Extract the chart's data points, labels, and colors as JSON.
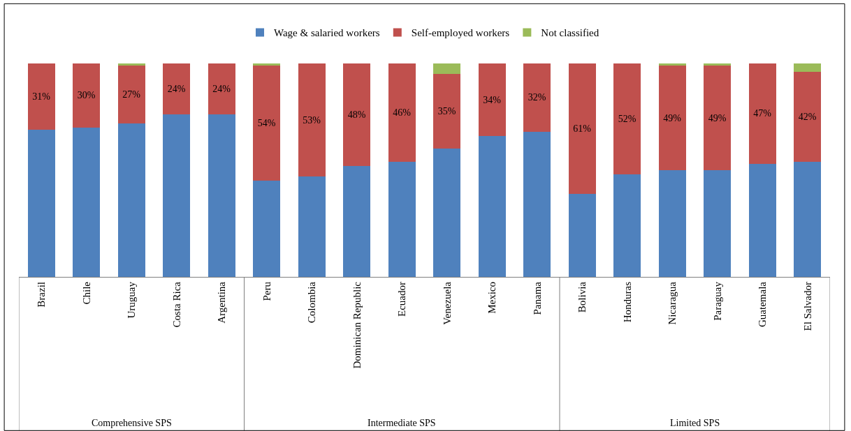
{
  "chart_data": {
    "type": "bar",
    "stacked": true,
    "legend": "top",
    "categories": [
      "Brazil",
      "Chile",
      "Uruguay",
      "Costa Rica",
      "Argentina",
      "Peru",
      "Colombia",
      "Dominican Republic",
      "Ecuador",
      "Venezuela",
      "Mexico",
      "Panama",
      "Bolivia",
      "Honduras",
      "Nicaragua",
      "Paraguay",
      "Guatemala",
      "El Salvador"
    ],
    "series": [
      {
        "name": "Wage & salaried workers",
        "color": "#4f81bd",
        "values": [
          69,
          70,
          72,
          76,
          76,
          45,
          47,
          52,
          54,
          60,
          66,
          68,
          39,
          48,
          50,
          50,
          53,
          54
        ]
      },
      {
        "name": "Self-employed workers",
        "color": "#c0504d",
        "values": [
          31,
          30,
          27,
          24,
          24,
          54,
          53,
          48,
          46,
          35,
          34,
          32,
          61,
          52,
          49,
          49,
          47,
          42
        ],
        "value_labels": [
          "31%",
          "30%",
          "27%",
          "24%",
          "24%",
          "54%",
          "53%",
          "48%",
          "46%",
          "35%",
          "34%",
          "32%",
          "61%",
          "52%",
          "49%",
          "49%",
          "47%",
          "42%"
        ]
      },
      {
        "name": "Not classified",
        "color": "#9bbb59",
        "values": [
          0,
          0,
          1,
          0,
          0,
          1,
          0,
          0,
          0,
          5,
          0,
          0,
          0,
          0,
          1,
          1,
          0,
          4
        ]
      }
    ],
    "annotations": [
      "Comprehensive SPS",
      "Intermediate SPS",
      "Limited SPS"
    ]
  }
}
